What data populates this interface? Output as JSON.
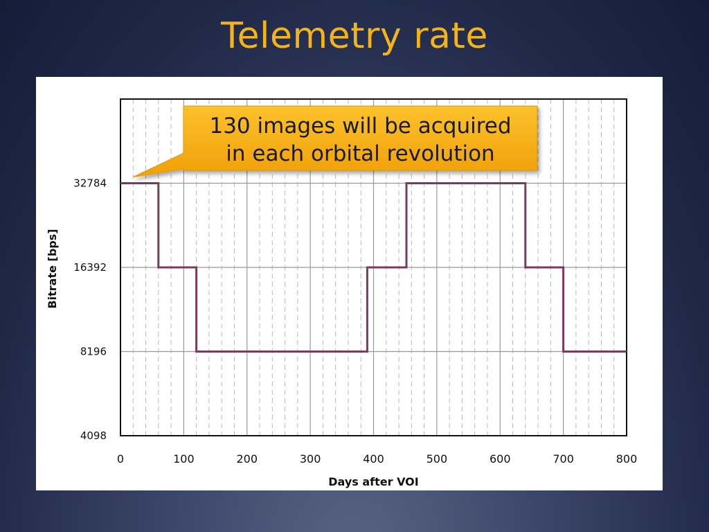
{
  "slide": {
    "title": "Telemetry rate"
  },
  "colors": {
    "title": "#f2b41a",
    "line": "#7a3b5c",
    "callout_top": "#fcc12c",
    "callout_bottom": "#f0a008"
  },
  "chart_data": {
    "type": "line",
    "step": true,
    "y_scale": "log2",
    "xlabel": "Days after VOI",
    "ylabel": "Bitrate [bps]",
    "xlim": [
      0,
      800
    ],
    "ylim": [
      4098,
      65568
    ],
    "x_ticks": [
      0,
      100,
      200,
      300,
      400,
      500,
      600,
      700,
      800
    ],
    "x_tick_labels": [
      "0",
      "100",
      "200",
      "300",
      "400",
      "500",
      "600",
      "700",
      "800"
    ],
    "y_ticks": [
      4098,
      8196,
      16392,
      32784
    ],
    "y_tick_labels": [
      "4098",
      "8196",
      "16392",
      "32784"
    ],
    "grid": true,
    "minor_grid_step": 20,
    "series": [
      {
        "name": "Bitrate",
        "x": [
          0,
          60,
          60,
          120,
          120,
          390,
          390,
          452,
          452,
          640,
          640,
          700,
          700,
          800
        ],
        "y": [
          32784,
          32784,
          16392,
          16392,
          8196,
          8196,
          16392,
          16392,
          32784,
          32784,
          16392,
          16392,
          8196,
          8196
        ]
      }
    ],
    "annotation": {
      "lines": [
        "130 images will be acquired",
        "in each orbital revolution"
      ],
      "points_to": {
        "x": 20,
        "y": 32784
      }
    }
  }
}
